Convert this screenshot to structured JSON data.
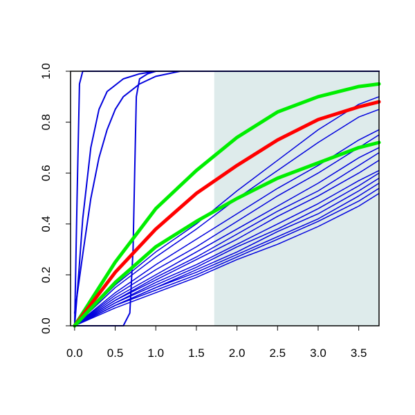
{
  "chart_data": {
    "type": "line",
    "title": "",
    "xlabel": "",
    "ylabel": "",
    "xlim": [
      -0.05,
      3.75
    ],
    "ylim": [
      0.0,
      1.0
    ],
    "grid": false,
    "legend": "none",
    "x_ticks": [
      "0.0",
      "0.5",
      "1.0",
      "1.5",
      "2.0",
      "2.5",
      "3.0",
      "3.5"
    ],
    "y_ticks": [
      "0.0",
      "0.2",
      "0.4",
      "0.6",
      "0.8",
      "1.0"
    ],
    "shaded_region": {
      "x_from": 1.72,
      "x_to": 3.75,
      "color": "#deebeb"
    },
    "colors": {
      "blue": "#0000dd",
      "red": "#ff0000",
      "green": "#00ee00",
      "axis": "#000000"
    },
    "series": [
      {
        "color": "blue",
        "width": 2,
        "x": [
          0,
          0.03,
          0.06,
          0.1,
          0.2,
          3.75
        ],
        "y": [
          0,
          0.5,
          0.95,
          1.0,
          1.0,
          1.0
        ]
      },
      {
        "color": "blue",
        "width": 2,
        "x": [
          0,
          0.05,
          0.1,
          0.2,
          0.3,
          0.4,
          0.6,
          0.8,
          1.0,
          3.75
        ],
        "y": [
          0,
          0.2,
          0.42,
          0.7,
          0.85,
          0.92,
          0.97,
          0.99,
          1.0,
          1.0
        ]
      },
      {
        "color": "blue",
        "width": 2,
        "x": [
          0,
          0.1,
          0.2,
          0.3,
          0.4,
          0.5,
          0.6,
          0.8,
          1.0,
          1.3,
          3.75
        ],
        "y": [
          0.05,
          0.28,
          0.5,
          0.66,
          0.77,
          0.85,
          0.9,
          0.95,
          0.98,
          1.0,
          1.0
        ]
      },
      {
        "color": "blue",
        "width": 2,
        "x": [
          0,
          0.6,
          0.68,
          0.72,
          0.74,
          0.76,
          0.8,
          0.9,
          1.0,
          3.75
        ],
        "y": [
          0,
          0,
          0.05,
          0.3,
          0.6,
          0.9,
          0.97,
          0.99,
          1.0,
          1.0
        ]
      },
      {
        "color": "blue",
        "width": 1.5,
        "x": [
          0,
          0.5,
          1,
          1.5,
          2,
          2.5,
          3,
          3.5,
          3.75
        ],
        "y": [
          0,
          0.16,
          0.29,
          0.4,
          0.53,
          0.65,
          0.77,
          0.87,
          0.9
        ]
      },
      {
        "color": "blue",
        "width": 1.5,
        "x": [
          0,
          0.5,
          1,
          1.5,
          2,
          2.5,
          3,
          3.5,
          3.75
        ],
        "y": [
          0,
          0.15,
          0.27,
          0.38,
          0.5,
          0.61,
          0.72,
          0.82,
          0.85
        ]
      },
      {
        "color": "blue",
        "width": 1.5,
        "x": [
          0,
          0.5,
          1,
          1.5,
          2,
          2.5,
          3,
          3.5,
          3.75
        ],
        "y": [
          0,
          0.13,
          0.24,
          0.34,
          0.44,
          0.54,
          0.63,
          0.73,
          0.77
        ]
      },
      {
        "color": "blue",
        "width": 1.5,
        "x": [
          0,
          0.5,
          1,
          1.5,
          2,
          2.5,
          3,
          3.5,
          3.75
        ],
        "y": [
          0,
          0.12,
          0.22,
          0.31,
          0.41,
          0.51,
          0.6,
          0.7,
          0.75
        ]
      },
      {
        "color": "blue",
        "width": 1.5,
        "x": [
          0,
          0.5,
          1,
          1.5,
          2,
          2.5,
          3,
          3.5,
          3.75
        ],
        "y": [
          0,
          0.11,
          0.2,
          0.29,
          0.38,
          0.47,
          0.56,
          0.66,
          0.7
        ]
      },
      {
        "color": "blue",
        "width": 1.5,
        "x": [
          0,
          0.5,
          1,
          1.5,
          2,
          2.5,
          3,
          3.5,
          3.75
        ],
        "y": [
          0,
          0.1,
          0.19,
          0.27,
          0.36,
          0.45,
          0.53,
          0.63,
          0.68
        ]
      },
      {
        "color": "blue",
        "width": 1.5,
        "x": [
          0,
          0.5,
          1,
          1.5,
          2,
          2.5,
          3,
          3.5,
          3.75
        ],
        "y": [
          0,
          0.1,
          0.18,
          0.26,
          0.34,
          0.43,
          0.51,
          0.6,
          0.65
        ]
      },
      {
        "color": "blue",
        "width": 1.5,
        "x": [
          0,
          0.5,
          1,
          1.5,
          2,
          2.5,
          3,
          3.5,
          3.75
        ],
        "y": [
          0,
          0.09,
          0.17,
          0.24,
          0.32,
          0.4,
          0.48,
          0.57,
          0.61
        ]
      },
      {
        "color": "blue",
        "width": 1.5,
        "x": [
          0,
          0.5,
          1,
          1.5,
          2,
          2.5,
          3,
          3.5,
          3.75
        ],
        "y": [
          0,
          0.09,
          0.16,
          0.23,
          0.31,
          0.38,
          0.46,
          0.55,
          0.6
        ]
      },
      {
        "color": "blue",
        "width": 1.5,
        "x": [
          0,
          0.5,
          1,
          1.5,
          2,
          2.5,
          3,
          3.5,
          3.75
        ],
        "y": [
          0,
          0.08,
          0.15,
          0.22,
          0.29,
          0.37,
          0.44,
          0.53,
          0.58
        ]
      },
      {
        "color": "blue",
        "width": 1.5,
        "x": [
          0,
          0.5,
          1,
          1.5,
          2,
          2.5,
          3,
          3.5,
          3.75
        ],
        "y": [
          0,
          0.08,
          0.15,
          0.21,
          0.28,
          0.35,
          0.42,
          0.51,
          0.56
        ]
      },
      {
        "color": "blue",
        "width": 1.5,
        "x": [
          0,
          0.5,
          1,
          1.5,
          2,
          2.5,
          3,
          3.5,
          3.75
        ],
        "y": [
          0,
          0.08,
          0.14,
          0.2,
          0.27,
          0.34,
          0.41,
          0.49,
          0.54
        ]
      },
      {
        "color": "blue",
        "width": 1.5,
        "x": [
          0,
          0.5,
          1,
          1.5,
          2,
          2.5,
          3,
          3.5,
          3.75
        ],
        "y": [
          0,
          0.07,
          0.13,
          0.19,
          0.26,
          0.32,
          0.39,
          0.47,
          0.52
        ]
      },
      {
        "color": "green",
        "width": 5,
        "x": [
          0,
          0.5,
          1,
          1.5,
          2,
          2.5,
          3,
          3.5,
          3.75
        ],
        "y": [
          0,
          0.25,
          0.46,
          0.61,
          0.74,
          0.84,
          0.9,
          0.94,
          0.95
        ]
      },
      {
        "color": "red",
        "width": 5,
        "x": [
          0,
          0.5,
          1,
          1.5,
          2,
          2.5,
          3,
          3.5,
          3.75
        ],
        "y": [
          0,
          0.21,
          0.38,
          0.52,
          0.63,
          0.73,
          0.81,
          0.86,
          0.88
        ]
      },
      {
        "color": "green",
        "width": 5,
        "x": [
          0,
          0.5,
          1,
          1.5,
          2,
          2.5,
          3,
          3.5,
          3.75
        ],
        "y": [
          0,
          0.17,
          0.31,
          0.41,
          0.5,
          0.58,
          0.64,
          0.7,
          0.72
        ]
      }
    ]
  }
}
